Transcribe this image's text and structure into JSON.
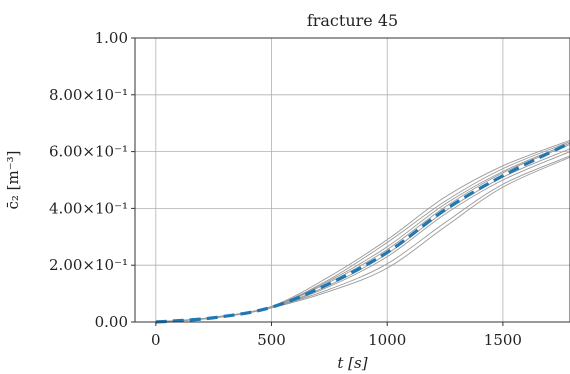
{
  "chart_data": {
    "type": "line",
    "title": "fracture 45",
    "xlabel": "t [s]",
    "ylabel": "c̄₂ [m⁻³]",
    "xlim": [
      -90,
      1790
    ],
    "ylim": [
      0,
      1.0
    ],
    "grid": true,
    "x_ticks": [
      {
        "value": 0,
        "label": "0"
      },
      {
        "value": 500,
        "label": "500"
      },
      {
        "value": 1000,
        "label": "1000"
      },
      {
        "value": 1500,
        "label": "1500"
      }
    ],
    "y_ticks": [
      {
        "value": 0.0,
        "label": "0.00"
      },
      {
        "value": 0.2,
        "label": "2.00×10⁻¹"
      },
      {
        "value": 0.4,
        "label": "4.00×10⁻¹"
      },
      {
        "value": 0.6,
        "label": "6.00×10⁻¹"
      },
      {
        "value": 0.8,
        "label": "8.00×10⁻¹"
      },
      {
        "value": 1.0,
        "label": "1.00"
      }
    ],
    "x": [
      0,
      250,
      500,
      750,
      1000,
      1250,
      1500,
      1790
    ],
    "series": [
      {
        "style": "thin",
        "color": "#9a9a9a",
        "values": [
          0.0,
          0.014,
          0.05,
          0.125,
          0.23,
          0.38,
          0.5,
          0.6
        ]
      },
      {
        "style": "thin",
        "color": "#9a9a9a",
        "values": [
          0.0,
          0.015,
          0.052,
          0.13,
          0.24,
          0.39,
          0.51,
          0.61
        ]
      },
      {
        "style": "thin",
        "color": "#9a9a9a",
        "values": [
          0.0,
          0.015,
          0.053,
          0.14,
          0.255,
          0.405,
          0.525,
          0.625
        ]
      },
      {
        "style": "thin",
        "color": "#9a9a9a",
        "values": [
          0.0,
          0.016,
          0.054,
          0.145,
          0.265,
          0.415,
          0.53,
          0.63
        ]
      },
      {
        "style": "thin",
        "color": "#9a9a9a",
        "values": [
          0.0,
          0.016,
          0.054,
          0.15,
          0.28,
          0.425,
          0.54,
          0.635
        ]
      },
      {
        "style": "thin",
        "color": "#9a9a9a",
        "values": [
          0.0,
          0.017,
          0.055,
          0.16,
          0.29,
          0.44,
          0.55,
          0.64
        ]
      },
      {
        "style": "thin",
        "color": "#9a9a9a",
        "values": [
          0.0,
          0.015,
          0.052,
          0.115,
          0.205,
          0.35,
          0.485,
          0.585
        ]
      },
      {
        "style": "thin",
        "color": "#9a9a9a",
        "values": [
          0.0,
          0.014,
          0.05,
          0.108,
          0.19,
          0.335,
          0.475,
          0.58
        ]
      },
      {
        "style": "mean",
        "color": "#1f77b4",
        "values": [
          0.0,
          0.015,
          0.052,
          0.135,
          0.245,
          0.395,
          0.515,
          0.63
        ]
      }
    ]
  }
}
